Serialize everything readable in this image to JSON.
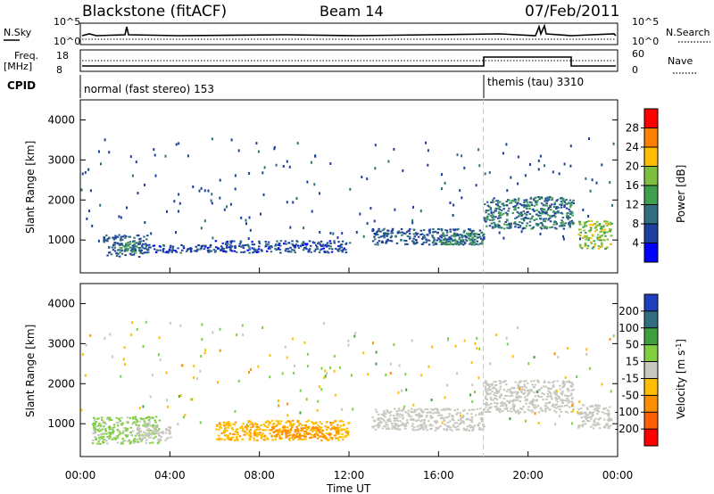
{
  "header": {
    "title": "Blackstone (fitACF)",
    "beam": "Beam 14",
    "date": "07/Feb/2011"
  },
  "top_panel": {
    "left_label": "N.Sky",
    "right_label": "N.Search",
    "left_top_tick": "10^5",
    "left_bottom_tick": "10^0",
    "right_top_tick": "10^5",
    "right_bottom_tick": "10^0"
  },
  "freq_panel": {
    "label_line1": "Freq.",
    "label_line2": "[MHz]",
    "left_ticks": [
      "18",
      "8"
    ],
    "right_label": "Nave",
    "right_ticks": [
      "60",
      "0"
    ]
  },
  "cpid": {
    "label": "CPID",
    "segments": [
      "normal (fast stereo) 153",
      "themis (tau) 3310"
    ]
  },
  "axes": {
    "xlabel": "Time UT",
    "ylabel": "Slant Range [km]",
    "xticks": [
      "00:00",
      "04:00",
      "08:00",
      "12:00",
      "16:00",
      "20:00",
      "00:00"
    ],
    "yticks": [
      "1000",
      "2000",
      "3000",
      "4000"
    ]
  },
  "power_colorbar": {
    "label": "Power [dB]",
    "ticks": [
      "4",
      "8",
      "12",
      "16",
      "20",
      "24",
      "28"
    ],
    "colors": [
      "#0000ff",
      "#1f3f9f",
      "#2f6f7f",
      "#3f9f4f",
      "#7fbf3f",
      "#ffbf00",
      "#ff7f00",
      "#ff0000"
    ]
  },
  "velocity_colorbar": {
    "label": "Velocity [m s^-1]",
    "ticks": [
      "200",
      "100",
      "50",
      "15",
      "-15",
      "-50",
      "-100",
      "-200"
    ],
    "colors": [
      "#1f3fbf",
      "#2f6f7f",
      "#3f9f3f",
      "#7fcf3f",
      "#c8c8c0",
      "#ffbf00",
      "#ff8f00",
      "#ff5f00",
      "#ff0000"
    ]
  },
  "chart_data": [
    {
      "type": "heatmap",
      "title": "Power",
      "xlabel": "Time UT",
      "ylabel": "Slant Range [km]",
      "xlim": [
        0,
        24
      ],
      "ylim": [
        180,
        4500
      ],
      "colorbar": "Power [dB]",
      "regions": [
        {
          "t": [
            1.0,
            3.0
          ],
          "r": [
            600,
            1150
          ],
          "v": 8
        },
        {
          "t": [
            1.7,
            2.5
          ],
          "r": [
            700,
            1000
          ],
          "v": 13
        },
        {
          "t": [
            3.0,
            6.0
          ],
          "r": [
            700,
            900
          ],
          "v": 6
        },
        {
          "t": [
            6.0,
            12.0
          ],
          "r": [
            700,
            1000
          ],
          "v": 7
        },
        {
          "t": [
            13.0,
            18.0
          ],
          "r": [
            900,
            1300
          ],
          "v": 8
        },
        {
          "t": [
            16.0,
            18.0
          ],
          "r": [
            900,
            1200
          ],
          "v": 12
        },
        {
          "t": [
            18.0,
            22.0
          ],
          "r": [
            1300,
            2100
          ],
          "v": 10
        },
        {
          "t": [
            22.2,
            23.7
          ],
          "r": [
            800,
            1500
          ],
          "v": 18
        }
      ]
    },
    {
      "type": "heatmap",
      "title": "Velocity",
      "xlabel": "Time UT",
      "ylabel": "Slant Range [km]",
      "xlim": [
        0,
        24
      ],
      "ylim": [
        180,
        4500
      ],
      "colorbar": "Velocity [m s^-1]",
      "regions": [
        {
          "t": [
            0.5,
            3.5
          ],
          "r": [
            500,
            1200
          ],
          "v": 20
        },
        {
          "t": [
            2.5,
            4.0
          ],
          "r": [
            600,
            950
          ],
          "v": 0
        },
        {
          "t": [
            6.0,
            12.0
          ],
          "r": [
            600,
            1100
          ],
          "v": -40
        },
        {
          "t": [
            8.5,
            11.5
          ],
          "r": [
            650,
            950
          ],
          "v": -70
        },
        {
          "t": [
            13.0,
            18.0
          ],
          "r": [
            850,
            1400
          ],
          "v": 0
        },
        {
          "t": [
            18.0,
            22.0
          ],
          "r": [
            1300,
            2100
          ],
          "v": 0
        },
        {
          "t": [
            22.2,
            23.7
          ],
          "r": [
            900,
            1500
          ],
          "v": 0
        }
      ]
    }
  ]
}
